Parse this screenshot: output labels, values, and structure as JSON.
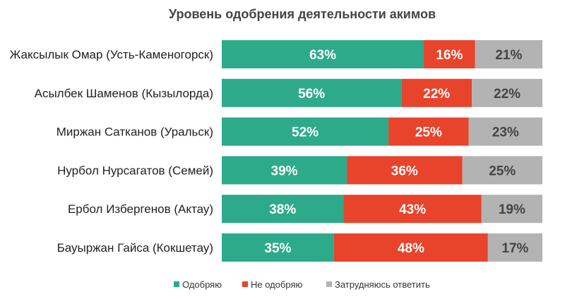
{
  "chart_data": {
    "type": "bar",
    "orientation": "horizontal",
    "stacked": true,
    "title": "Уровень одобрения деятельности акимов",
    "categories": [
      "Жаксылык Омар (Усть-Каменогорск)",
      "Асылбек Шаменов (Кызылорда)",
      "Миржан Сатканов (Уральск)",
      "Нурбол Нурсагатов (Семей)",
      "Ербол Избергенов (Актау)",
      "Бауыржан Гайса (Кокшетау)"
    ],
    "series": [
      {
        "name": "Одобряю",
        "color": "#2daa8a",
        "label_color": "#ffffff",
        "values": [
          63,
          56,
          52,
          39,
          38,
          35
        ],
        "labels": [
          "63%",
          "56%",
          "52%",
          "39%",
          "38%",
          "35%"
        ]
      },
      {
        "name": "Не одобряю",
        "color": "#e8432b",
        "label_color": "#ffffff",
        "values": [
          16,
          22,
          25,
          36,
          43,
          48
        ],
        "labels": [
          "16%",
          "22%",
          "25%",
          "36%",
          "43%",
          "48%"
        ]
      },
      {
        "name": "Затрудняюсь ответить",
        "color": "#b3b3b3",
        "label_color": "#444444",
        "values": [
          21,
          22,
          23,
          25,
          19,
          17
        ],
        "labels": [
          "21%",
          "22%",
          "23%",
          "25%",
          "19%",
          "17%"
        ]
      }
    ],
    "xlim": [
      0,
      100
    ],
    "xlabel": "",
    "ylabel": "",
    "legend": "bottom-center",
    "grid": false
  }
}
